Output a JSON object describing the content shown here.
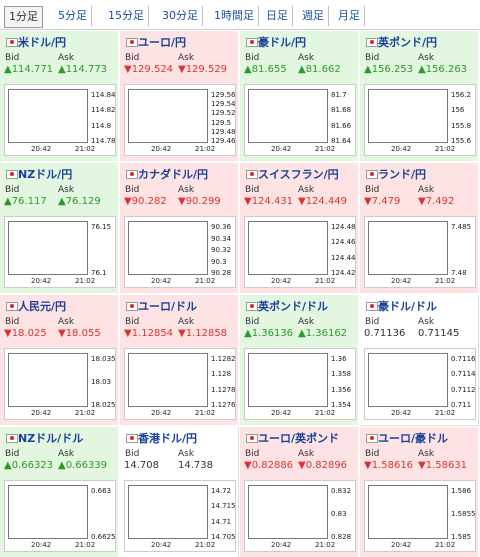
{
  "tabs": [
    "1分足",
    "5分足",
    "15分足",
    "30分足",
    "1時間足",
    "日足",
    "週足",
    "月足"
  ],
  "labels": {
    "bid": "Bid",
    "ask": "Ask",
    "time_start": "20:42",
    "time_end": "21:02"
  },
  "tiles": [
    {
      "name": "米ドル/円",
      "trend": "up",
      "bid": "▲114.771",
      "ask": "▲114.773",
      "ticks": [
        "114.84",
        "114.82",
        "114.8",
        "114.78"
      ]
    },
    {
      "name": "ユーロ/円",
      "trend": "down",
      "bid": "▼129.524",
      "ask": "▼129.529",
      "ticks": [
        "129.56",
        "129.54",
        "129.52",
        "129.5",
        "129.48",
        "129.46"
      ]
    },
    {
      "name": "豪ドル/円",
      "trend": "up",
      "bid": "▲81.655",
      "ask": "▲81.662",
      "ticks": [
        "81.7",
        "81.68",
        "81.66",
        "81.64"
      ]
    },
    {
      "name": "英ポンド/円",
      "trend": "up",
      "bid": "▲156.253",
      "ask": "▲156.263",
      "ticks": [
        "156.2",
        "156",
        "155.8",
        "155.6"
      ]
    },
    {
      "name": "NZドル/円",
      "trend": "up",
      "bid": "▲76.117",
      "ask": "▲76.129",
      "ticks": [
        "76.15",
        "76.1"
      ]
    },
    {
      "name": "カナダドル/円",
      "trend": "down",
      "bid": "▼90.282",
      "ask": "▼90.299",
      "ticks": [
        "90.36",
        "90.34",
        "90.32",
        "90.3",
        "90.28"
      ]
    },
    {
      "name": "スイスフラン/円",
      "trend": "down",
      "bid": "▼124.431",
      "ask": "▼124.449",
      "ticks": [
        "124.48",
        "124.46",
        "124.44",
        "124.42"
      ]
    },
    {
      "name": "ランド/円",
      "trend": "down",
      "bid": "▼7.479",
      "ask": "▼7.492",
      "ticks": [
        "7.485",
        "7.48"
      ]
    },
    {
      "name": "人民元/円",
      "trend": "down",
      "bid": "▼18.025",
      "ask": "▼18.055",
      "ticks": [
        "18.035",
        "18.03",
        "18.025"
      ]
    },
    {
      "name": "ユーロ/ドル",
      "trend": "down",
      "bid": "▼1.12854",
      "ask": "▼1.12858",
      "ticks": [
        "1.1282",
        "1.128",
        "1.1278",
        "1.1276"
      ]
    },
    {
      "name": "英ポンド/ドル",
      "trend": "up",
      "bid": "▲1.36136",
      "ask": "▲1.36162",
      "ticks": [
        "1.36",
        "1.358",
        "1.356",
        "1.354"
      ]
    },
    {
      "name": "豪ドル/ドル",
      "trend": "none",
      "bid": "0.71136",
      "ask": "0.71145",
      "ticks": [
        "0.7116",
        "0.7114",
        "0.7112",
        "0.711"
      ]
    },
    {
      "name": "NZドル/ドル",
      "trend": "up",
      "bid": "▲0.66323",
      "ask": "▲0.66339",
      "ticks": [
        "0.663",
        "0.6625"
      ]
    },
    {
      "name": "香港ドル/円",
      "trend": "none",
      "bid": "14.708",
      "ask": "14.738",
      "ticks": [
        "14.72",
        "14.715",
        "14.71",
        "14.705"
      ]
    },
    {
      "name": "ユーロ/英ポンド",
      "trend": "down",
      "bid": "▼0.82886",
      "ask": "▼0.82896",
      "ticks": [
        "0.832",
        "0.83",
        "0.828"
      ]
    },
    {
      "name": "ユーロ/豪ドル",
      "trend": "down",
      "bid": "▼1.58616",
      "ask": "▼1.58631",
      "ticks": [
        "1.586",
        "1.5855",
        "1.585"
      ]
    }
  ]
}
